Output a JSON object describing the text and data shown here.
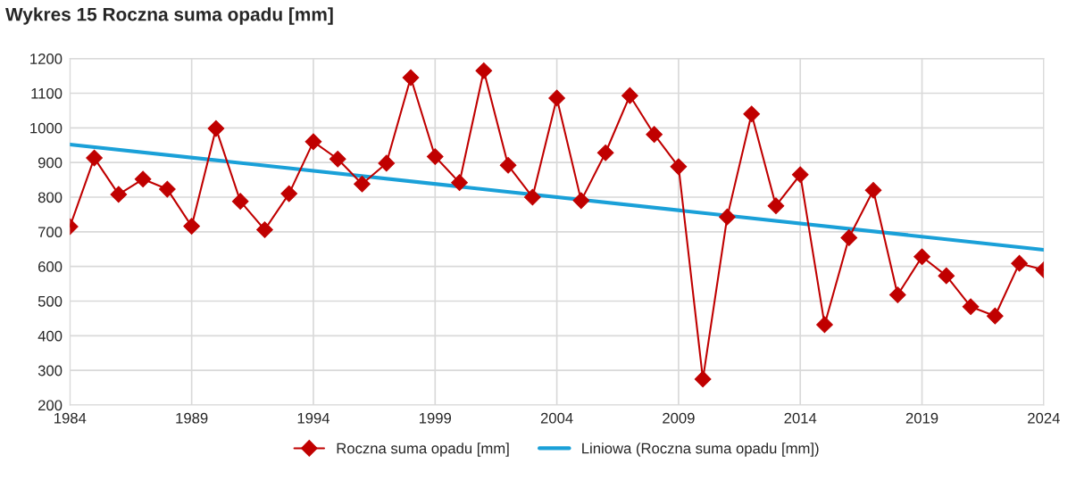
{
  "chart_data": {
    "type": "line",
    "title": "Wykres 15 Roczna suma opadu [mm]",
    "x": [
      1984,
      1985,
      1986,
      1987,
      1988,
      1989,
      1990,
      1991,
      1992,
      1993,
      1994,
      1995,
      1996,
      1997,
      1998,
      1999,
      2000,
      2001,
      2002,
      2003,
      2004,
      2005,
      2006,
      2007,
      2008,
      2009,
      2010,
      2011,
      2012,
      2013,
      2014,
      2015,
      2016,
      2017,
      2018,
      2019,
      2020,
      2021,
      2022,
      2023,
      2024
    ],
    "series": [
      {
        "name": "Roczna suma opadu [mm]",
        "color": "#c00000",
        "marker": "diamond",
        "values": [
          715,
          913,
          808,
          852,
          823,
          716,
          998,
          788,
          706,
          810,
          960,
          910,
          838,
          898,
          1145,
          917,
          842,
          1165,
          892,
          800,
          1086,
          790,
          928,
          1093,
          981,
          888,
          275,
          743,
          1040,
          775,
          865,
          432,
          683,
          820,
          518,
          628,
          573,
          484,
          457,
          609,
          590
        ]
      },
      {
        "name": "Liniowa (Roczna suma opadu [mm])",
        "color": "#1aa0d8",
        "marker": "none",
        "x": [
          1984,
          2024
        ],
        "values": [
          952,
          648
        ]
      }
    ],
    "xlim": [
      1984,
      2024
    ],
    "xticks": [
      1984,
      1989,
      1994,
      1999,
      2004,
      2009,
      2014,
      2019,
      2024
    ],
    "ylim": [
      200,
      1200
    ],
    "yticks": [
      200,
      300,
      400,
      500,
      600,
      700,
      800,
      900,
      1000,
      1100,
      1200
    ],
    "grid": true,
    "legend": "bottom"
  }
}
